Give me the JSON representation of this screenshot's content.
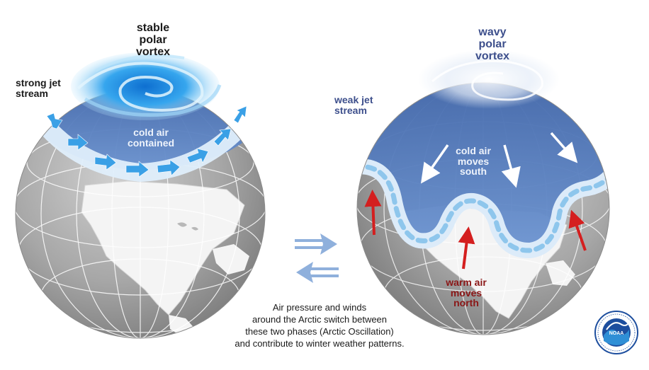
{
  "left_globe": {
    "title": "stable\npolar\nvortex",
    "jet_label": "strong jet\nstream",
    "air_label": "cold air\ncontained"
  },
  "right_globe": {
    "title": "wavy\npolar\nvortex",
    "jet_label": "weak jet\nstream",
    "cold_label": "cold air\nmoves\nsouth",
    "warm_label": "warm air\nmoves\nnorth"
  },
  "caption": "Air pressure and winds\naround the Arctic switch between\nthese two phases (Arctic Oscillation)\nand contribute to winter weather patterns.",
  "logo": {
    "text": "NOAA",
    "ring_text": "NATIONAL OCEANIC AND ATMOSPHERIC ADMINISTRATION · U.S. DEPARTMENT OF COMMERCE"
  },
  "colors": {
    "cold_blue": "#4f79bd",
    "jet_arrow": "#3aa0e6",
    "warm_arrow": "#d41f1f",
    "switch_arrow": "#8fb0dc",
    "land": "#f4f4f4",
    "ocean": "#a5a5a5"
  }
}
